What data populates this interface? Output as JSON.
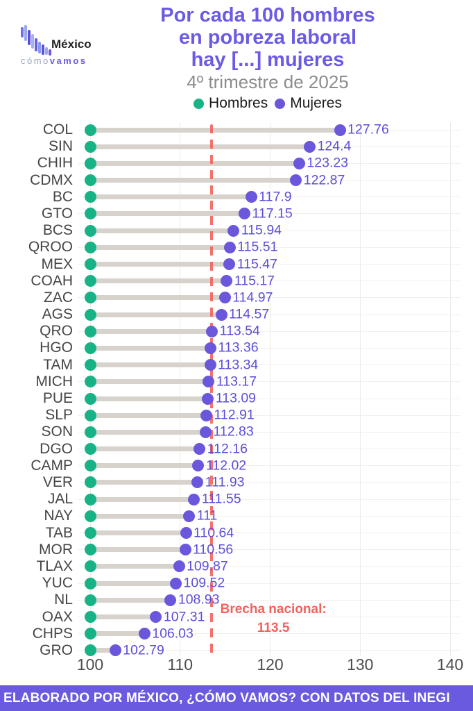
{
  "logo": {
    "mexico": "México",
    "como": "cómo",
    "vamos": "vamos"
  },
  "title": {
    "line1": "Por cada 100 hombres",
    "line2": "en pobreza laboral",
    "line3": "hay [...] mujeres",
    "subtitle": "4º trimestre de 2025"
  },
  "legend": {
    "items": [
      {
        "label": "Hombres",
        "color": "#17B286"
      },
      {
        "label": "Mujeres",
        "color": "#6A57DB"
      }
    ]
  },
  "chart_data": {
    "type": "dumbbell",
    "orientation": "horizontal",
    "title": "Por cada 100 hombres en pobreza laboral hay [...] mujeres",
    "subtitle": "4º trimestre de 2025",
    "categories": [
      "COL",
      "SIN",
      "CHIH",
      "CDMX",
      "BC",
      "GTO",
      "BCS",
      "QROO",
      "MEX",
      "COAH",
      "ZAC",
      "AGS",
      "QRO",
      "HGO",
      "TAM",
      "MICH",
      "PUE",
      "SLP",
      "SON",
      "DGO",
      "CAMP",
      "VER",
      "JAL",
      "NAY",
      "TAB",
      "MOR",
      "TLAX",
      "YUC",
      "NL",
      "OAX",
      "CHPS",
      "GRO"
    ],
    "series": [
      {
        "name": "Hombres",
        "color": "#17B286",
        "baseline_value": 100
      },
      {
        "name": "Mujeres",
        "color": "#6A57DB",
        "values": [
          127.76,
          124.4,
          123.23,
          122.87,
          117.9,
          117.15,
          115.94,
          115.51,
          115.47,
          115.17,
          114.97,
          114.57,
          113.54,
          113.36,
          113.34,
          113.17,
          113.09,
          112.91,
          112.83,
          112.16,
          112.02,
          111.93,
          111.55,
          111,
          110.64,
          110.56,
          109.87,
          109.52,
          108.93,
          107.31,
          106.03,
          102.79
        ],
        "display_values": [
          "127.76",
          "124.4",
          "123.23",
          "122.87",
          "117.9",
          "117.15",
          "115.94",
          "115.51",
          "115.47",
          "115.17",
          "114.97",
          "114.57",
          "113.54",
          "113.36",
          "113.34",
          "113.17",
          "113.09",
          "112.91",
          "112.83",
          "112.16",
          "112.02",
          "111.93",
          "111.55",
          "111",
          "110.64",
          "110.56",
          "109.87",
          "109.52",
          "108.93",
          "107.31",
          "106.03",
          "102.79"
        ]
      }
    ],
    "x_ticks": [
      100,
      110,
      120,
      130,
      140
    ],
    "xlim": [
      97,
      141
    ],
    "grid": true,
    "legend_position": "top",
    "reference_line": {
      "value": 113.5,
      "label_line1": "Brecha nacional:",
      "label_line2": "113.5",
      "color": "#F4625C",
      "style": "dashed"
    }
  },
  "colors": {
    "accent_purple": "#6A5BE2",
    "green": "#17B286",
    "track": "#D7D3CC",
    "red": "#F4625C",
    "footer_background": "#6A5AE0"
  },
  "footer": {
    "text": "ELABORADO POR MÉXICO, ¿CÓMO VAMOS? CON DATOS DEL INEGI"
  }
}
